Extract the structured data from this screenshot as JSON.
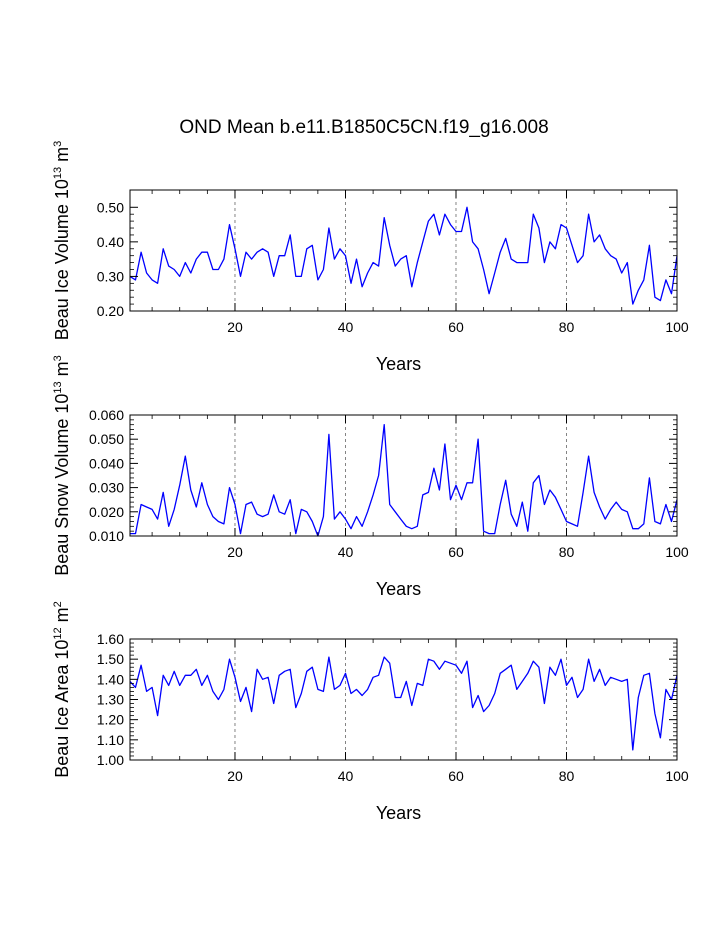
{
  "title": "OND Mean b.e11.B1850C5CN.f19_g16.008",
  "colors": {
    "line": "#0000ff",
    "axis": "#000000",
    "grid": "#666666"
  },
  "chart_data": [
    {
      "type": "line",
      "ylabel_main": "Beau Ice Volume 10",
      "ylabel_exp": "13",
      "ylabel_unit": " m",
      "ylabel_unit_exp": "3",
      "xlabel": "Years",
      "xlim": [
        1,
        100
      ],
      "ylim": [
        0.2,
        0.55
      ],
      "yticks": [
        0.2,
        0.3,
        0.4,
        0.5
      ],
      "ytick_labels": [
        "0.20",
        "0.30",
        "0.40",
        "0.50"
      ],
      "xticks": [
        20,
        40,
        60,
        80,
        100
      ],
      "xtick_labels": [
        "20",
        "40",
        "60",
        "80",
        "100"
      ],
      "x_gridlines": [
        20,
        40,
        60,
        80
      ],
      "x": [
        1,
        2,
        3,
        4,
        5,
        6,
        7,
        8,
        9,
        10,
        11,
        12,
        13,
        14,
        15,
        16,
        17,
        18,
        19,
        20,
        21,
        22,
        23,
        24,
        25,
        26,
        27,
        28,
        29,
        30,
        31,
        32,
        33,
        34,
        35,
        36,
        37,
        38,
        39,
        40,
        41,
        42,
        43,
        44,
        45,
        46,
        47,
        48,
        49,
        50,
        51,
        52,
        53,
        54,
        55,
        56,
        57,
        58,
        59,
        60,
        61,
        62,
        63,
        64,
        65,
        66,
        67,
        68,
        69,
        70,
        71,
        72,
        73,
        74,
        75,
        76,
        77,
        78,
        79,
        80,
        81,
        82,
        83,
        84,
        85,
        86,
        87,
        88,
        89,
        90,
        91,
        92,
        93,
        94,
        95,
        96,
        97,
        98,
        99,
        100
      ],
      "values": [
        0.3,
        0.29,
        0.37,
        0.31,
        0.29,
        0.28,
        0.38,
        0.33,
        0.32,
        0.3,
        0.34,
        0.31,
        0.35,
        0.37,
        0.37,
        0.32,
        0.32,
        0.35,
        0.45,
        0.38,
        0.3,
        0.37,
        0.35,
        0.37,
        0.38,
        0.37,
        0.3,
        0.36,
        0.36,
        0.42,
        0.3,
        0.3,
        0.38,
        0.39,
        0.29,
        0.32,
        0.44,
        0.35,
        0.38,
        0.36,
        0.28,
        0.35,
        0.27,
        0.31,
        0.34,
        0.33,
        0.47,
        0.39,
        0.33,
        0.35,
        0.36,
        0.27,
        0.34,
        0.4,
        0.46,
        0.48,
        0.42,
        0.48,
        0.45,
        0.43,
        0.43,
        0.5,
        0.4,
        0.38,
        0.32,
        0.25,
        0.31,
        0.37,
        0.41,
        0.35,
        0.34,
        0.34,
        0.34,
        0.48,
        0.44,
        0.34,
        0.4,
        0.38,
        0.45,
        0.44,
        0.39,
        0.34,
        0.36,
        0.48,
        0.4,
        0.42,
        0.38,
        0.36,
        0.35,
        0.31,
        0.34,
        0.22,
        0.26,
        0.29,
        0.39,
        0.24,
        0.23,
        0.29,
        0.25,
        0.36
      ]
    },
    {
      "type": "line",
      "ylabel_main": "Beau Snow Volume 10",
      "ylabel_exp": "13",
      "ylabel_unit": " m",
      "ylabel_unit_exp": "3",
      "xlabel": "Years",
      "xlim": [
        1,
        100
      ],
      "ylim": [
        0.01,
        0.06
      ],
      "yticks": [
        0.01,
        0.02,
        0.03,
        0.04,
        0.05,
        0.06
      ],
      "ytick_labels": [
        "0.010",
        "0.020",
        "0.030",
        "0.040",
        "0.050",
        "0.060"
      ],
      "xticks": [
        20,
        40,
        60,
        80,
        100
      ],
      "xtick_labels": [
        "20",
        "40",
        "60",
        "80",
        "100"
      ],
      "x_gridlines": [
        20,
        40,
        60,
        80
      ],
      "x": [
        1,
        2,
        3,
        4,
        5,
        6,
        7,
        8,
        9,
        10,
        11,
        12,
        13,
        14,
        15,
        16,
        17,
        18,
        19,
        20,
        21,
        22,
        23,
        24,
        25,
        26,
        27,
        28,
        29,
        30,
        31,
        32,
        33,
        34,
        35,
        36,
        37,
        38,
        39,
        40,
        41,
        42,
        43,
        44,
        45,
        46,
        47,
        48,
        49,
        50,
        51,
        52,
        53,
        54,
        55,
        56,
        57,
        58,
        59,
        60,
        61,
        62,
        63,
        64,
        65,
        66,
        67,
        68,
        69,
        70,
        71,
        72,
        73,
        74,
        75,
        76,
        77,
        78,
        79,
        80,
        81,
        82,
        83,
        84,
        85,
        86,
        87,
        88,
        89,
        90,
        91,
        92,
        93,
        94,
        95,
        96,
        97,
        98,
        99,
        100
      ],
      "values": [
        0.011,
        0.011,
        0.023,
        0.022,
        0.021,
        0.017,
        0.028,
        0.014,
        0.021,
        0.031,
        0.043,
        0.029,
        0.022,
        0.032,
        0.023,
        0.018,
        0.016,
        0.015,
        0.03,
        0.023,
        0.011,
        0.023,
        0.024,
        0.019,
        0.018,
        0.019,
        0.027,
        0.02,
        0.019,
        0.025,
        0.011,
        0.021,
        0.02,
        0.016,
        0.01,
        0.018,
        0.052,
        0.017,
        0.02,
        0.017,
        0.013,
        0.018,
        0.014,
        0.02,
        0.027,
        0.035,
        0.056,
        0.023,
        0.02,
        0.017,
        0.014,
        0.013,
        0.014,
        0.027,
        0.028,
        0.038,
        0.029,
        0.048,
        0.025,
        0.031,
        0.025,
        0.032,
        0.032,
        0.05,
        0.012,
        0.011,
        0.011,
        0.023,
        0.033,
        0.019,
        0.014,
        0.024,
        0.012,
        0.032,
        0.035,
        0.023,
        0.029,
        0.026,
        0.021,
        0.016,
        0.015,
        0.014,
        0.028,
        0.043,
        0.028,
        0.022,
        0.017,
        0.021,
        0.024,
        0.021,
        0.02,
        0.013,
        0.013,
        0.015,
        0.034,
        0.016,
        0.015,
        0.023,
        0.016,
        0.025
      ]
    },
    {
      "type": "line",
      "ylabel_main": "Beau Ice Area 10",
      "ylabel_exp": "12",
      "ylabel_unit": " m",
      "ylabel_unit_exp": "2",
      "xlabel": "Years",
      "xlim": [
        1,
        100
      ],
      "ylim": [
        1.0,
        1.6
      ],
      "yticks": [
        1.0,
        1.1,
        1.2,
        1.3,
        1.4,
        1.5,
        1.6
      ],
      "ytick_labels": [
        "1.00",
        "1.10",
        "1.20",
        "1.30",
        "1.40",
        "1.50",
        "1.60"
      ],
      "xticks": [
        20,
        40,
        60,
        80,
        100
      ],
      "xtick_labels": [
        "20",
        "40",
        "60",
        "80",
        "100"
      ],
      "x_gridlines": [
        20,
        40,
        60,
        80
      ],
      "x": [
        1,
        2,
        3,
        4,
        5,
        6,
        7,
        8,
        9,
        10,
        11,
        12,
        13,
        14,
        15,
        16,
        17,
        18,
        19,
        20,
        21,
        22,
        23,
        24,
        25,
        26,
        27,
        28,
        29,
        30,
        31,
        32,
        33,
        34,
        35,
        36,
        37,
        38,
        39,
        40,
        41,
        42,
        43,
        44,
        45,
        46,
        47,
        48,
        49,
        50,
        51,
        52,
        53,
        54,
        55,
        56,
        57,
        58,
        59,
        60,
        61,
        62,
        63,
        64,
        65,
        66,
        67,
        68,
        69,
        70,
        71,
        72,
        73,
        74,
        75,
        76,
        77,
        78,
        79,
        80,
        81,
        82,
        83,
        84,
        85,
        86,
        87,
        88,
        89,
        90,
        91,
        92,
        93,
        94,
        95,
        96,
        97,
        98,
        99,
        100
      ],
      "values": [
        1.39,
        1.36,
        1.47,
        1.34,
        1.36,
        1.22,
        1.42,
        1.37,
        1.44,
        1.37,
        1.42,
        1.42,
        1.45,
        1.37,
        1.42,
        1.34,
        1.3,
        1.35,
        1.5,
        1.41,
        1.29,
        1.36,
        1.24,
        1.45,
        1.4,
        1.41,
        1.28,
        1.42,
        1.44,
        1.45,
        1.26,
        1.33,
        1.44,
        1.46,
        1.35,
        1.34,
        1.51,
        1.35,
        1.37,
        1.43,
        1.33,
        1.35,
        1.32,
        1.35,
        1.41,
        1.42,
        1.51,
        1.48,
        1.31,
        1.31,
        1.39,
        1.27,
        1.38,
        1.37,
        1.5,
        1.49,
        1.45,
        1.49,
        1.48,
        1.47,
        1.43,
        1.49,
        1.26,
        1.32,
        1.24,
        1.27,
        1.33,
        1.43,
        1.45,
        1.47,
        1.35,
        1.39,
        1.43,
        1.49,
        1.46,
        1.28,
        1.46,
        1.42,
        1.5,
        1.37,
        1.41,
        1.31,
        1.35,
        1.5,
        1.39,
        1.45,
        1.37,
        1.41,
        1.4,
        1.39,
        1.4,
        1.05,
        1.31,
        1.42,
        1.43,
        1.23,
        1.11,
        1.35,
        1.3,
        1.42
      ]
    }
  ]
}
